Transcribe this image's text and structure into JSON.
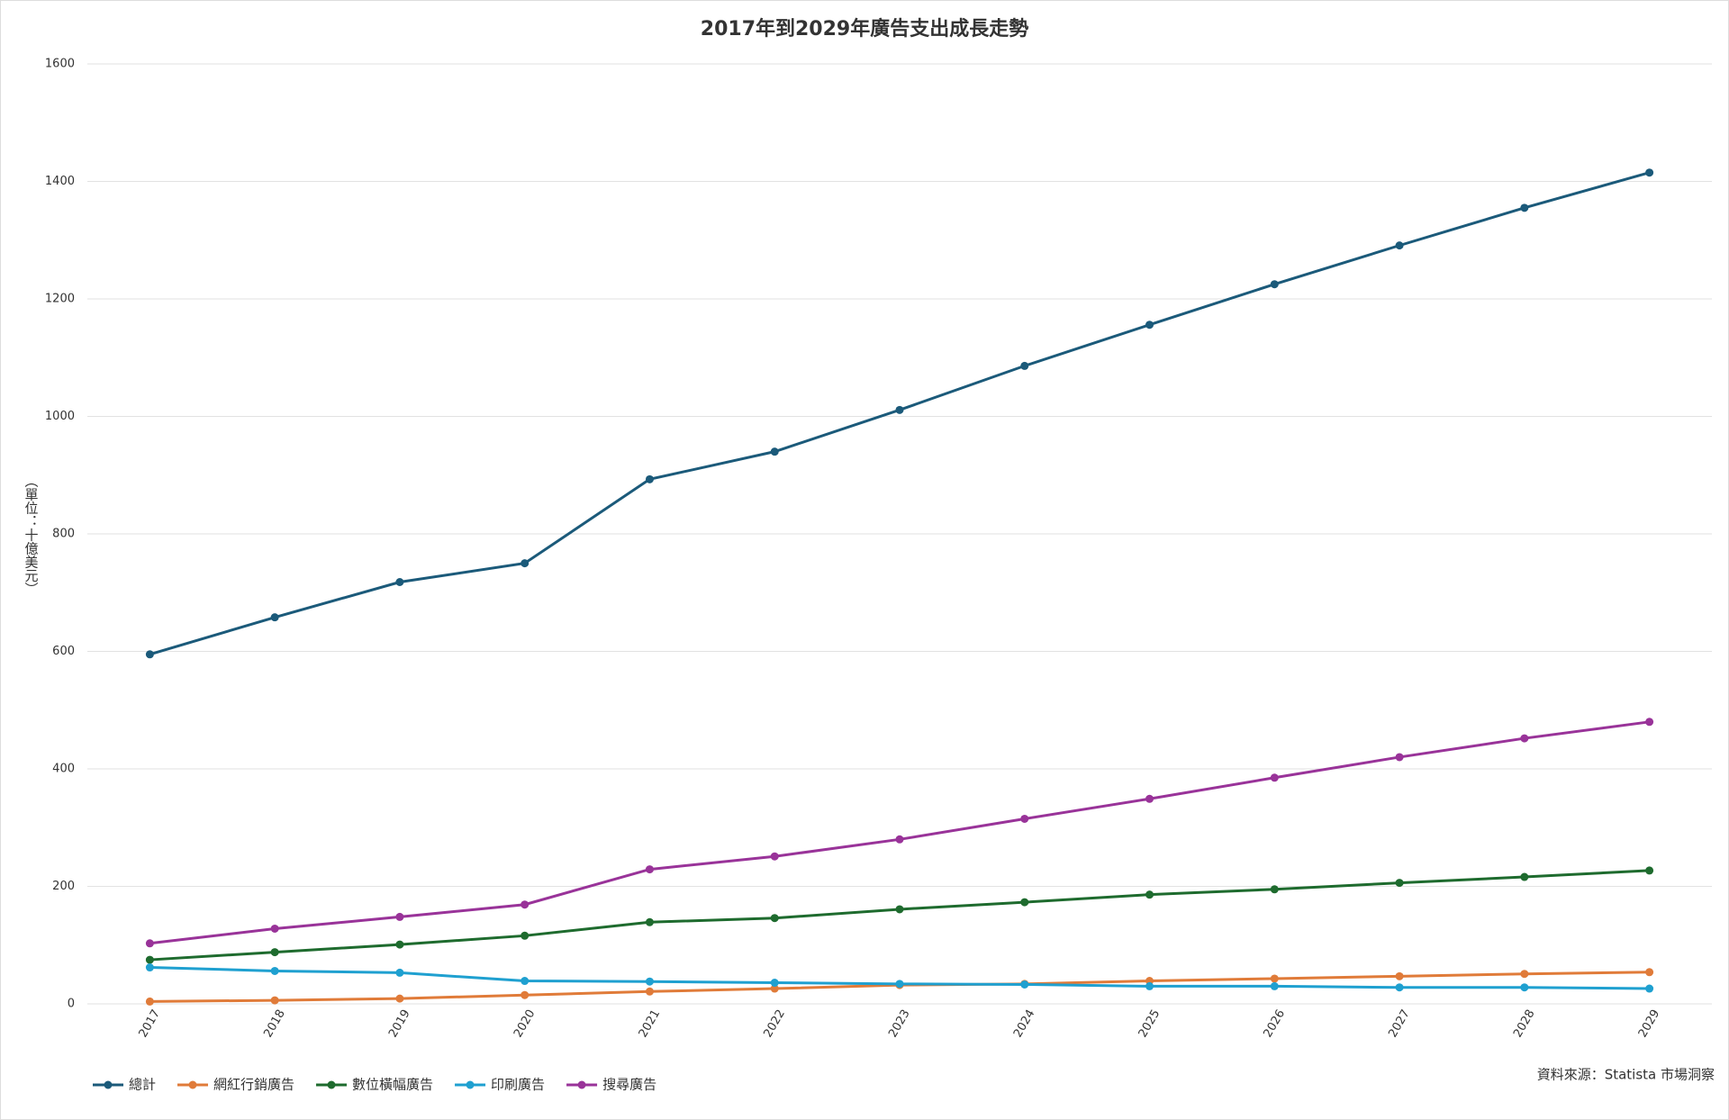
{
  "chart_data": {
    "type": "line",
    "title": "2017年到2029年廣告支出成長走勢",
    "y_label": "（單位：十億美元）",
    "source": "資料來源：Statista 市場洞察",
    "categories": [
      "2017",
      "2018",
      "2019",
      "2020",
      "2021",
      "2022",
      "2023",
      "2024",
      "2025",
      "2026",
      "2027",
      "2028",
      "2029"
    ],
    "series": [
      {
        "name": "總計",
        "color": "#1b5a7a",
        "values": [
          595,
          658,
          718,
          750,
          893,
          940,
          1011,
          1086,
          1156,
          1225,
          1291,
          1355,
          1415
        ]
      },
      {
        "name": "網紅行銷廣告",
        "color": "#e07b39",
        "values": [
          4,
          6,
          9,
          15,
          21,
          26,
          32,
          34,
          39,
          43,
          47,
          51,
          54
        ]
      },
      {
        "name": "數位橫幅廣告",
        "color": "#1e6b2e",
        "values": [
          75,
          88,
          101,
          116,
          139,
          146,
          161,
          173,
          186,
          195,
          206,
          216,
          227
        ]
      },
      {
        "name": "印刷廣告",
        "color": "#1fa0d0",
        "values": [
          62,
          56,
          53,
          39,
          38,
          36,
          34,
          33,
          30,
          30,
          28,
          28,
          26
        ]
      },
      {
        "name": "搜尋廣告",
        "color": "#993399",
        "values": [
          103,
          128,
          148,
          169,
          229,
          251,
          280,
          315,
          349,
          385,
          420,
          452,
          480
        ]
      }
    ],
    "ylim": [
      0,
      1600
    ],
    "yticks": [
      0,
      200,
      400,
      600,
      800,
      1000,
      1200,
      1400,
      1600
    ],
    "grid": true,
    "legend": "bottom-left"
  }
}
